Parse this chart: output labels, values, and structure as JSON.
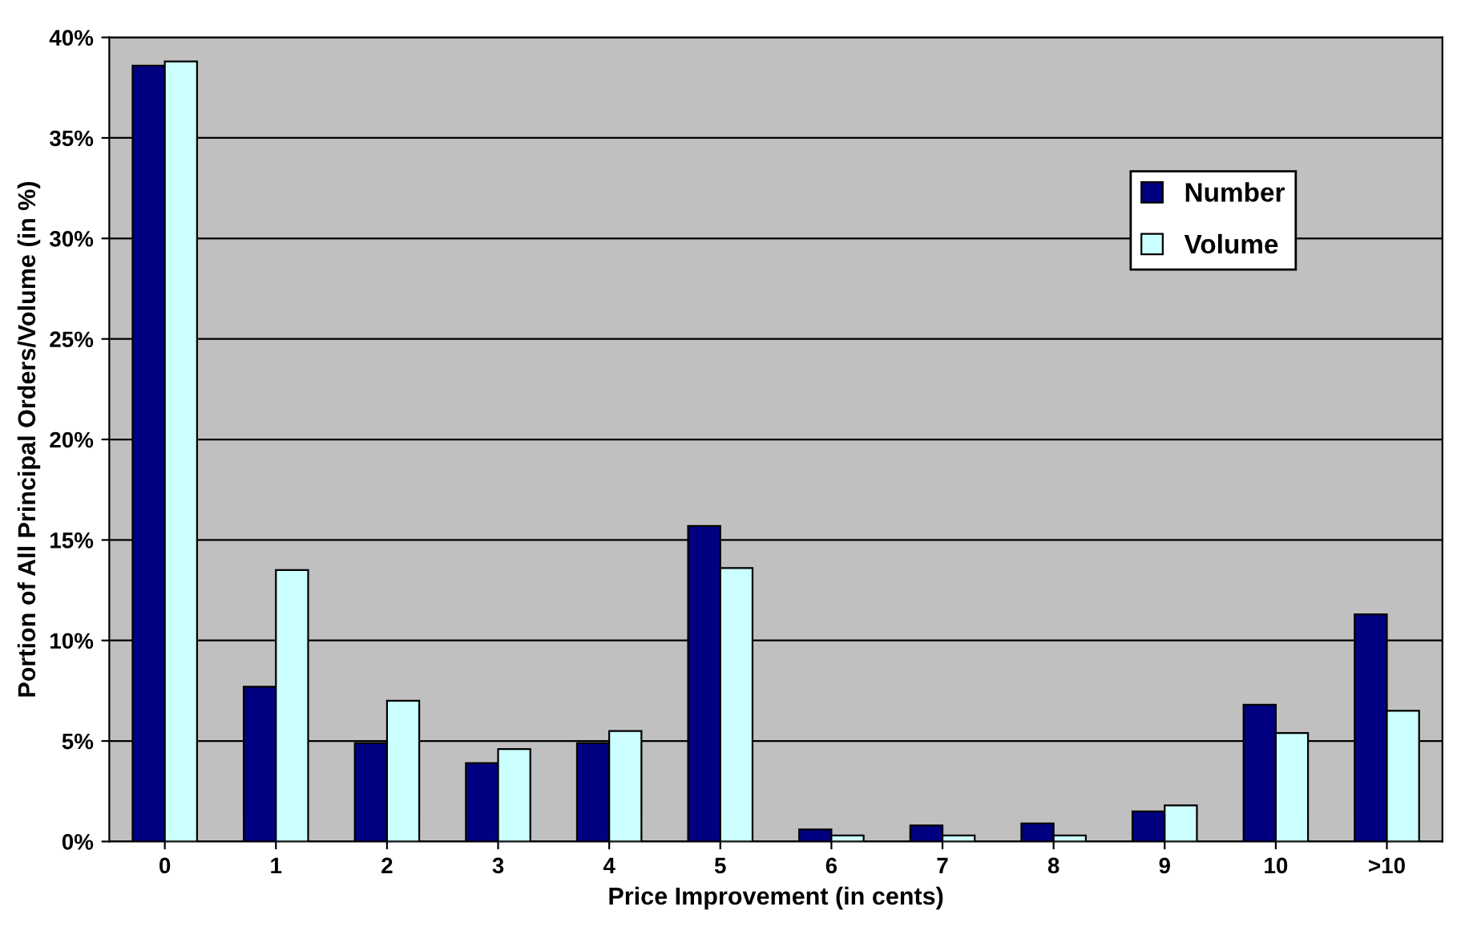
{
  "chart_data": {
    "type": "bar",
    "xlabel": "Price Improvement (in cents)",
    "ylabel": "Portion of All Principal Orders/Volume (in %)",
    "categories": [
      "0",
      "1",
      "2",
      "3",
      "4",
      "5",
      "6",
      "7",
      "8",
      "9",
      "10",
      ">10"
    ],
    "series": [
      {
        "name": "Number",
        "color": "#000080",
        "values": [
          38.6,
          7.7,
          4.9,
          3.9,
          4.9,
          15.7,
          0.6,
          0.8,
          0.9,
          1.5,
          6.8,
          11.3
        ]
      },
      {
        "name": "Volume",
        "color": "#ccffff",
        "values": [
          38.8,
          13.5,
          7.0,
          4.6,
          5.5,
          13.6,
          0.3,
          0.3,
          0.3,
          1.8,
          5.4,
          6.5
        ]
      }
    ],
    "ylim": [
      0,
      40
    ],
    "yticks": [
      {
        "value": 0,
        "label": "0%"
      },
      {
        "value": 5,
        "label": "5%"
      },
      {
        "value": 10,
        "label": "10%"
      },
      {
        "value": 15,
        "label": "15%"
      },
      {
        "value": 20,
        "label": "20%"
      },
      {
        "value": 25,
        "label": "25%"
      },
      {
        "value": 30,
        "label": "30%"
      },
      {
        "value": 35,
        "label": "35%"
      },
      {
        "value": 40,
        "label": "40%"
      }
    ],
    "grid": "y",
    "legend": "top right"
  }
}
